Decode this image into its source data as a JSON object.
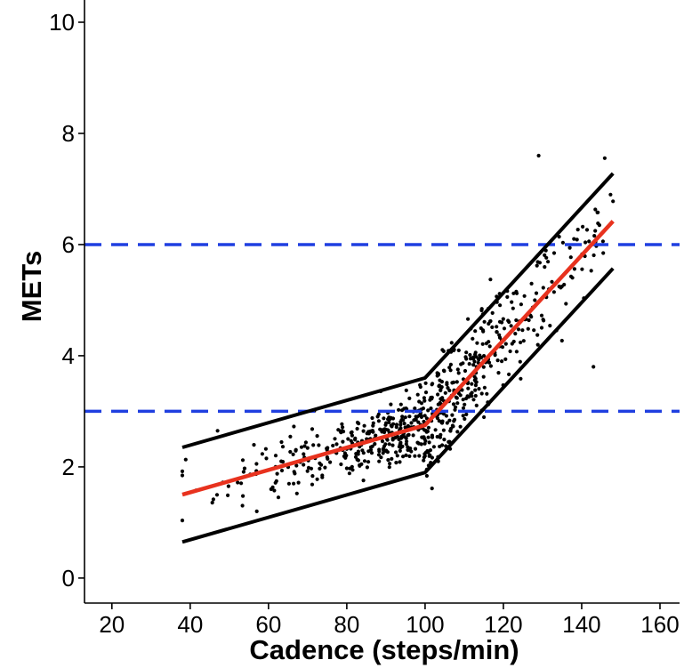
{
  "chart_data": {
    "type": "scatter",
    "title": "",
    "xlabel": "Cadence (steps/min)",
    "ylabel": "METs",
    "xlim": [
      13,
      165
    ],
    "ylim": [
      -0.45,
      10.4
    ],
    "x_ticks": [
      20,
      40,
      60,
      80,
      100,
      120,
      140,
      160
    ],
    "y_ticks": [
      0,
      2,
      4,
      6,
      8,
      10
    ],
    "grid": false,
    "legend": "none",
    "reference_lines": [
      {
        "orientation": "horizontal",
        "y": 3,
        "style": "dashed",
        "color": "#1f3fe0"
      },
      {
        "orientation": "horizontal",
        "y": 6,
        "style": "dashed",
        "color": "#1f3fe0"
      }
    ],
    "series": [
      {
        "role": "fit",
        "color": "#e8321e",
        "points": [
          [
            38,
            1.5
          ],
          [
            100,
            2.75
          ],
          [
            148,
            6.42
          ]
        ]
      },
      {
        "role": "upper-bound",
        "color": "#000000",
        "points": [
          [
            38,
            2.35
          ],
          [
            100,
            3.6
          ],
          [
            148,
            7.28
          ]
        ]
      },
      {
        "role": "lower-bound",
        "color": "#000000",
        "points": [
          [
            38,
            0.65
          ],
          [
            100,
            1.9
          ],
          [
            148,
            5.57
          ]
        ]
      }
    ],
    "scatter_points": {
      "color": "#000000",
      "count": 700,
      "x_range": [
        38,
        148
      ],
      "outliers": [
        [
          129,
          7.6
        ],
        [
          143,
          3.8
        ],
        [
          47,
          2.65
        ],
        [
          57,
          1.2
        ]
      ]
    }
  }
}
